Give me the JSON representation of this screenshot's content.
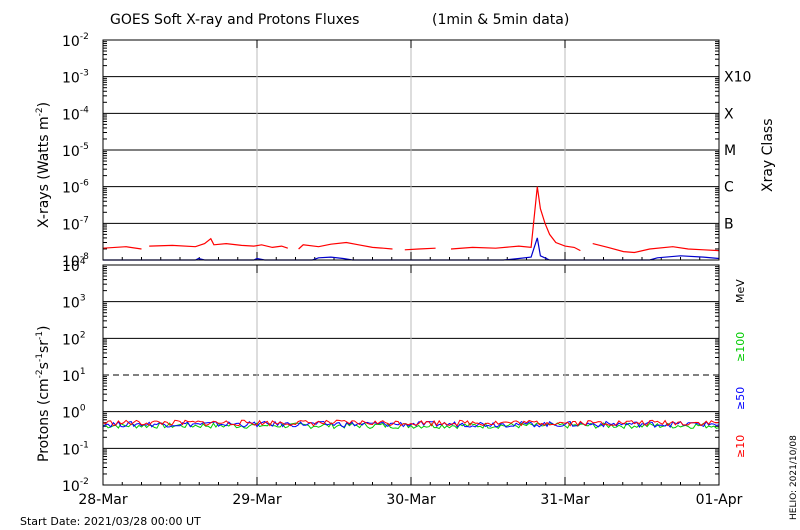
{
  "title": "GOES Soft X-ray and Protons Fluxes",
  "subtitle": "(1min & 5min data)",
  "start_date": "Start Date: 2021/03/28 00:00 UT",
  "credit": "HELIO: 2021/10/08",
  "colors": {
    "xray_long": "#ff0000",
    "xray_short": "#0000cc",
    "p10": "#ff0000",
    "p50": "#0000ff",
    "p100": "#00cc00",
    "grid": "#000000",
    "day_lines": "#bbbbbb"
  },
  "chart_data": [
    {
      "type": "line",
      "panel": "xrays",
      "ylabel": "X-rays (Watts m",
      "ylabel_sup": "-2",
      "ylabel_tail": ")",
      "yscale": "log",
      "ylim_exp": [
        -8,
        -2
      ],
      "ytick_exponents": [
        "-8",
        "-7",
        "-6",
        "-5",
        "-4",
        "-3",
        "-2"
      ],
      "right_axis_label": "Xray Class",
      "class_labels": [
        {
          "label": "B",
          "exp": -7
        },
        {
          "label": "C",
          "exp": -6
        },
        {
          "label": "M",
          "exp": -5
        },
        {
          "label": "X",
          "exp": -4
        },
        {
          "label": "X10",
          "exp": -3
        }
      ],
      "series": [
        {
          "color": "#ff0000",
          "points": [
            [
              0.0,
              2.1e-08
            ],
            [
              0.15,
              2.3e-08
            ],
            [
              0.25,
              2e-08
            ],
            [
              0.26,
              null
            ],
            [
              0.3,
              2.4e-08
            ],
            [
              0.45,
              2.5e-08
            ],
            [
              0.6,
              2.3e-08
            ],
            [
              0.66,
              2.8e-08
            ],
            [
              0.7,
              3.8e-08
            ],
            [
              0.72,
              2.6e-08
            ],
            [
              0.8,
              2.8e-08
            ],
            [
              0.9,
              2.5e-08
            ],
            [
              0.98,
              2.4e-08
            ],
            [
              1.03,
              2.6e-08
            ],
            [
              1.1,
              2.2e-08
            ],
            [
              1.16,
              2.4e-08
            ],
            [
              1.2,
              2.1e-08
            ],
            [
              1.23,
              null
            ],
            [
              1.27,
              2e-08
            ],
            [
              1.3,
              2.6e-08
            ],
            [
              1.4,
              2.3e-08
            ],
            [
              1.48,
              2.7e-08
            ],
            [
              1.58,
              3e-08
            ],
            [
              1.66,
              2.6e-08
            ],
            [
              1.75,
              2.2e-08
            ],
            [
              1.82,
              2.1e-08
            ],
            [
              1.88,
              2e-08
            ],
            [
              1.92,
              null
            ],
            [
              1.96,
              1.9e-08
            ],
            [
              2.05,
              2e-08
            ],
            [
              2.16,
              2.1e-08
            ],
            [
              2.2,
              null
            ],
            [
              2.26,
              2e-08
            ],
            [
              2.4,
              2.2e-08
            ],
            [
              2.55,
              2.1e-08
            ],
            [
              2.7,
              2.4e-08
            ],
            [
              2.78,
              2.2e-08
            ],
            [
              2.82,
              1e-06
            ],
            [
              2.84,
              2.5e-07
            ],
            [
              2.87,
              1e-07
            ],
            [
              2.9,
              5e-08
            ],
            [
              2.94,
              3e-08
            ],
            [
              3.0,
              2.4e-08
            ],
            [
              3.06,
              2.2e-08
            ],
            [
              3.1,
              1.8e-08
            ],
            [
              3.13,
              null
            ],
            [
              3.18,
              2.8e-08
            ],
            [
              3.28,
              2.2e-08
            ],
            [
              3.38,
              1.7e-08
            ],
            [
              3.45,
              1.6e-08
            ],
            [
              3.55,
              2e-08
            ],
            [
              3.7,
              2.3e-08
            ],
            [
              3.8,
              2e-08
            ],
            [
              3.9,
              1.9e-08
            ],
            [
              4.0,
              1.8e-08
            ]
          ]
        },
        {
          "color": "#0000cc",
          "points": [
            [
              0.0,
              1e-08
            ],
            [
              0.6,
              1e-08
            ],
            [
              0.62,
              1.1e-08
            ],
            [
              0.66,
              1e-08
            ],
            [
              0.98,
              1e-08
            ],
            [
              1.0,
              1.1e-08
            ],
            [
              1.05,
              1e-08
            ],
            [
              1.36,
              1e-08
            ],
            [
              1.4,
              1.15e-08
            ],
            [
              1.48,
              1.2e-08
            ],
            [
              1.56,
              1.1e-08
            ],
            [
              1.62,
              1e-08
            ],
            [
              2.6,
              1e-08
            ],
            [
              2.7,
              1.1e-08
            ],
            [
              2.78,
              1.2e-08
            ],
            [
              2.82,
              4e-08
            ],
            [
              2.84,
              1.3e-08
            ],
            [
              2.9,
              1e-08
            ],
            [
              3.55,
              1e-08
            ],
            [
              3.6,
              1.15e-08
            ],
            [
              3.75,
              1.3e-08
            ],
            [
              3.9,
              1.2e-08
            ],
            [
              4.0,
              1.1e-08
            ]
          ]
        }
      ]
    },
    {
      "type": "line",
      "panel": "protons",
      "ylabel": "Protons (cm",
      "ylabel_parts": [
        [
          "",
          "-2"
        ],
        [
          "s",
          "-1"
        ],
        [
          "sr",
          "-1"
        ]
      ],
      "ylabel_tail": ")",
      "yscale": "log",
      "ylim_exp": [
        -2,
        4
      ],
      "ytick_exponents": [
        "-2",
        "-1",
        "0",
        "1",
        "2",
        "3",
        "4"
      ],
      "threshold_exp": 1,
      "unit_label": "MeV",
      "series": [
        {
          "name": "≥100",
          "color": "#00cc00",
          "level": 0.42
        },
        {
          "name": "≥50",
          "color": "#0000ff",
          "level": 0.46
        },
        {
          "name": "≥10",
          "color": "#ff0000",
          "level": 0.5
        }
      ]
    }
  ],
  "x_axis": {
    "range_days": [
      0,
      4
    ],
    "ticks": [
      {
        "label": "28-Mar",
        "day": 0
      },
      {
        "label": "29-Mar",
        "day": 1
      },
      {
        "label": "30-Mar",
        "day": 2
      },
      {
        "label": "31-Mar",
        "day": 3
      },
      {
        "label": "01-Apr",
        "day": 4
      }
    ]
  }
}
